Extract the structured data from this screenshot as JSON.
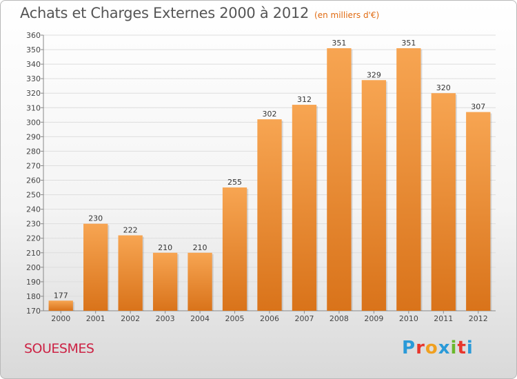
{
  "title": "Achats et Charges Externes 2000 à 2012",
  "subtitle": "(en milliers d'€)",
  "place": "SOUESMES",
  "brand": {
    "letters": [
      "P",
      "r",
      "o",
      "x",
      "i",
      "t",
      "i"
    ],
    "colors": [
      "#2a9ad8",
      "#e8362c",
      "#f0a020",
      "#2a9ad8",
      "#6ab82c",
      "#e8362c",
      "#2a9ad8"
    ]
  },
  "colors": {
    "bar_light": "#f7a552",
    "bar_dark": "#d9731a",
    "grid": "#dddddd",
    "axis": "#888888"
  },
  "chart_data": {
    "type": "bar",
    "categories": [
      "2000",
      "2001",
      "2002",
      "2003",
      "2004",
      "2005",
      "2006",
      "2007",
      "2008",
      "2009",
      "2010",
      "2011",
      "2012"
    ],
    "values": [
      177,
      230,
      222,
      210,
      210,
      255,
      302,
      312,
      351,
      329,
      351,
      320,
      307
    ],
    "ylim": [
      170,
      360
    ],
    "ytick_step": 10,
    "grid": true,
    "data_labels": true
  }
}
